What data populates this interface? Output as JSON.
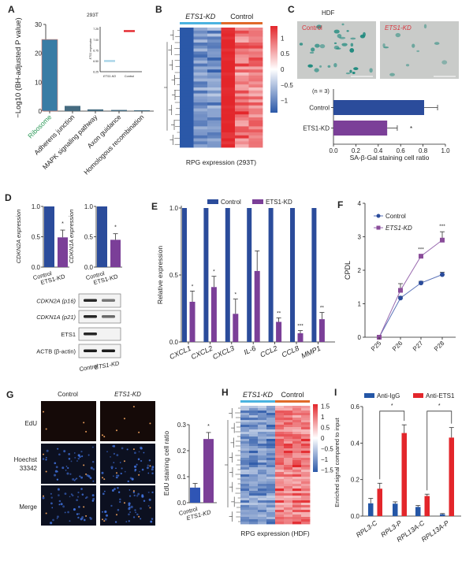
{
  "panel_labels": [
    "A",
    "B",
    "C",
    "D",
    "E",
    "F",
    "G",
    "H",
    "I"
  ],
  "colors": {
    "control_blue": "#2b4c9b",
    "kd_purple": "#7b3f98",
    "ribosome_bar": "#3a7ca5",
    "ribosome_label": "#2e9a5a",
    "heat_red": "#e3262b",
    "heat_blue": "#2b58a8",
    "kd_track": "#4bb3e0",
    "control_track": "#e06a2a",
    "igg_blue": "#2456a6",
    "ets1_red": "#e3262b",
    "image_label_red": "#d8353d"
  },
  "chart_data": [
    {
      "panel": "A",
      "type": "bar",
      "ylabel": "−Log10 (BH-adjusted P value)",
      "categories": [
        "Ribosome",
        "Adherens junction",
        "MAPK signaling pathway",
        "Axon guidance",
        "Homologous recombination"
      ],
      "values": [
        24.8,
        1.8,
        0.6,
        0.4,
        0.3
      ],
      "ylim": [
        0,
        30
      ],
      "yticks": [
        0,
        10,
        20,
        30
      ],
      "inset": {
        "title": "293T",
        "ylabel": "ETS1 expression",
        "categories": [
          "ETS1-KD",
          "Control"
        ],
        "values": [
          6.5,
          7.2
        ],
        "ylim": [
          6.25,
          7.3
        ],
        "yticks": [
          "6.25",
          "6.50",
          "6.75",
          "7.00",
          "7.25"
        ]
      }
    },
    {
      "panel": "B",
      "type": "heatmap",
      "groups": [
        "ETS1-KD",
        "Control"
      ],
      "columns": 6,
      "colorbar_ticks": [
        "1",
        "0.5",
        "0",
        "−0.5",
        "−1"
      ],
      "color_range": [
        -1.3,
        1.3
      ],
      "caption": "RPG expression (293T)"
    },
    {
      "panel": "C",
      "type": "bar",
      "orientation": "horizontal",
      "title": "HDF",
      "image_labels": [
        "Control",
        "ETS1-KD"
      ],
      "n_label": "(n = 3)",
      "categories": [
        "Control",
        "ETS1-KD"
      ],
      "values": [
        0.81,
        0.48
      ],
      "errors": [
        0.12,
        0.09
      ],
      "significance": [
        "",
        "*"
      ],
      "xlabel": "SA-β-Gal staining cell ratio",
      "xlim": [
        0,
        1
      ],
      "xticks": [
        "0.0",
        "0.2",
        "0.4",
        "0.6",
        "0.8",
        "1.0"
      ]
    },
    {
      "panel": "D",
      "type": "bar",
      "charts": [
        {
          "ylabel": "CDKN2A expression",
          "categories": [
            "Control",
            "ETS1-KD"
          ],
          "values": [
            1.0,
            0.49
          ],
          "errors": [
            0,
            0.12
          ],
          "significance": [
            "",
            "*"
          ]
        },
        {
          "ylabel": "CDKN1A expression",
          "categories": [
            "Control",
            "ETS1-KD"
          ],
          "values": [
            1.0,
            0.45
          ],
          "errors": [
            0,
            0.1
          ],
          "significance": [
            "",
            "*"
          ]
        }
      ],
      "ylim": [
        0,
        1
      ],
      "yticks": [
        "0.0",
        "0.5",
        "1.0"
      ],
      "blot": {
        "rows": [
          "CDKN2A (p16)",
          "CDKN1A (p21)",
          "ETS1",
          "ACTB (β-actin)"
        ],
        "lanes": [
          "Control",
          "ETS1-KD"
        ],
        "band_intensity": [
          [
            0.9,
            0.55
          ],
          [
            0.9,
            0.6
          ],
          [
            0.9,
            0.03
          ],
          [
            0.95,
            0.95
          ]
        ]
      }
    },
    {
      "panel": "E",
      "type": "bar",
      "ylabel": "Relative expression",
      "categories": [
        "CXCL1",
        "CXCL2",
        "CXCL3",
        "IL-6",
        "CCL2",
        "CCL8",
        "MMP1"
      ],
      "series": [
        {
          "name": "Control",
          "values": [
            1,
            1,
            1,
            1,
            1,
            1,
            1
          ]
        },
        {
          "name": "ETS1-KD",
          "values": [
            0.3,
            0.41,
            0.21,
            0.53,
            0.15,
            0.065,
            0.17
          ],
          "errors": [
            0.08,
            0.08,
            0.11,
            0.15,
            0.03,
            0.02,
            0.05
          ]
        }
      ],
      "significance": [
        "*",
        "*",
        "*",
        "",
        "**",
        "***",
        "**"
      ],
      "ylim": [
        0,
        1
      ],
      "yticks": [
        "0.0",
        "0.5",
        "1.0"
      ],
      "legend": "top"
    },
    {
      "panel": "F",
      "type": "line",
      "ylabel": "CPDL",
      "categories": [
        "P25",
        "P26",
        "P27",
        "P28"
      ],
      "series": [
        {
          "name": "Control",
          "values": [
            0,
            1.17,
            1.62,
            1.87
          ],
          "errors": [
            0,
            0.05,
            0.05,
            0.07
          ]
        },
        {
          "name": "ETS1-KD",
          "values": [
            0,
            1.4,
            2.42,
            2.9
          ],
          "errors": [
            0,
            0.2,
            0.04,
            0.25
          ]
        }
      ],
      "significance": [
        "",
        "",
        "***",
        "***"
      ],
      "ylim": [
        0,
        4
      ],
      "yticks": [
        "0",
        "1",
        "2",
        "3",
        "4"
      ],
      "legend": "top-left"
    },
    {
      "panel": "G",
      "type": "bar",
      "columns": [
        "Control",
        "ETS1-KD"
      ],
      "rows": [
        "EdU",
        "Hoechst 33342",
        "Merge"
      ],
      "ylabel": "EdU staining cell ratio",
      "categories": [
        "Control",
        "ETS1-KD"
      ],
      "values": [
        0.058,
        0.245
      ],
      "errors": [
        0.016,
        0.025
      ],
      "significance": [
        "",
        "*"
      ],
      "ylim": [
        0,
        0.3
      ],
      "yticks": [
        "0.0",
        "0.1",
        "0.2",
        "0.3"
      ]
    },
    {
      "panel": "H",
      "type": "heatmap",
      "groups": [
        "ETS1-KD",
        "Control"
      ],
      "columns": 8,
      "colorbar_ticks": [
        "1.5",
        "1",
        "0.5",
        "0",
        "−0.5",
        "−1",
        "−1.5"
      ],
      "color_range": [
        -1.7,
        1.7
      ],
      "caption": "RPG expression (HDF)"
    },
    {
      "panel": "I",
      "type": "bar",
      "ylabel": "Enriched signal compared to input",
      "categories": [
        "RPL3-C",
        "RPL3-P",
        "RPL13A-C",
        "RPL13A-P"
      ],
      "series": [
        {
          "name": "Anti-IgG",
          "values": [
            0.07,
            0.068,
            0.05,
            0.01
          ],
          "errors": [
            0.027,
            0.01,
            0.008,
            0.004
          ]
        },
        {
          "name": "Anti-ETS1",
          "values": [
            0.15,
            0.455,
            0.11,
            0.43
          ],
          "errors": [
            0.03,
            0.045,
            0.01,
            0.055
          ]
        }
      ],
      "comparisons": [
        {
          "from": "RPL3-C",
          "to": "RPL3-P",
          "label": "*"
        },
        {
          "from": "RPL13A-C",
          "to": "RPL13A-P",
          "label": "*"
        }
      ],
      "ylim": [
        0,
        0.6
      ],
      "yticks": [
        "0.0",
        "0.2",
        "0.4",
        "0.6"
      ],
      "legend": "top"
    }
  ]
}
